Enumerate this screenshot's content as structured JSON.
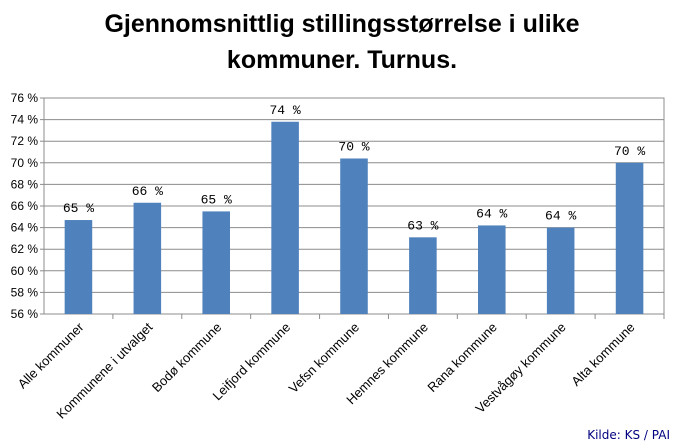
{
  "chart_data": {
    "type": "bar",
    "title": "Gjennomsnittlig stillingsstørrelse i ulike kommuner. Turnus.",
    "title_lines": [
      "Gjennomsnittlig stillingsstørrelse i ulike",
      "kommuner. Turnus."
    ],
    "categories": [
      "Alle kommuner",
      "Kommunene i utvalget",
      "Bodø kommune",
      "Leifjord kommune",
      "Vefsn kommune",
      "Hemnes kommune",
      "Rana kommune",
      "Vestvågøy kommune",
      "Alta kommune"
    ],
    "values": [
      64.7,
      66.3,
      65.5,
      73.8,
      70.4,
      63.1,
      64.2,
      64.0,
      70.0
    ],
    "data_labels": [
      "65 %",
      "66 %",
      "65 %",
      "74 %",
      "70 %",
      "63 %",
      "64 %",
      "64 %",
      "70 %"
    ],
    "yticks": [
      "56 %",
      "58 %",
      "60 %",
      "62 %",
      "64 %",
      "66 %",
      "68 %",
      "70 %",
      "72 %",
      "74 %",
      "76 %"
    ],
    "ylim": [
      56,
      76
    ],
    "ystep": 2,
    "grid": true,
    "legend": "none",
    "bar_color": "#4F81BD",
    "source": "Kilde: KS / PAI"
  }
}
